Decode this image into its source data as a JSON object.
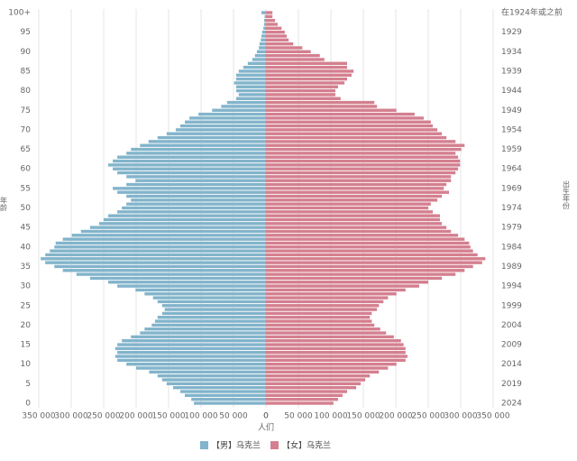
{
  "chart_data": {
    "type": "pyramid",
    "x_label": "人们",
    "y_label": "年龄",
    "y2_label": "出生年份",
    "categories": [
      "0",
      null,
      null,
      null,
      null,
      "5",
      null,
      null,
      null,
      null,
      "10",
      null,
      null,
      null,
      null,
      "15",
      null,
      null,
      null,
      null,
      "20",
      null,
      null,
      null,
      null,
      "25",
      null,
      null,
      null,
      null,
      "30",
      null,
      null,
      null,
      null,
      "35",
      null,
      null,
      null,
      null,
      "40",
      null,
      null,
      null,
      null,
      "45",
      null,
      null,
      null,
      null,
      "50",
      null,
      null,
      null,
      null,
      "55",
      null,
      null,
      null,
      null,
      "60",
      null,
      null,
      null,
      null,
      "65",
      null,
      null,
      null,
      null,
      "70",
      null,
      null,
      null,
      null,
      "75",
      null,
      null,
      null,
      null,
      "80",
      null,
      null,
      null,
      null,
      "85",
      null,
      null,
      null,
      null,
      "90",
      null,
      null,
      null,
      null,
      "95",
      null,
      null,
      null,
      null,
      "100+"
    ],
    "birth_years": [
      "2024",
      null,
      null,
      null,
      null,
      "2019",
      null,
      null,
      null,
      null,
      "2014",
      null,
      null,
      null,
      null,
      "2009",
      null,
      null,
      null,
      null,
      "2004",
      null,
      null,
      null,
      null,
      "1999",
      null,
      null,
      null,
      null,
      "1994",
      null,
      null,
      null,
      null,
      "1989",
      null,
      null,
      null,
      null,
      "1984",
      null,
      null,
      null,
      null,
      "1979",
      null,
      null,
      null,
      null,
      "1974",
      null,
      null,
      null,
      null,
      "1969",
      null,
      null,
      null,
      null,
      "1964",
      null,
      null,
      null,
      null,
      "1959",
      null,
      null,
      null,
      null,
      "1954",
      null,
      null,
      null,
      null,
      "1949",
      null,
      null,
      null,
      null,
      "1944",
      null,
      null,
      null,
      null,
      "1939",
      null,
      null,
      null,
      null,
      "1934",
      null,
      null,
      null,
      null,
      "1929",
      null,
      null,
      null,
      null,
      "在1924年或之前"
    ],
    "series": [
      {
        "name": "【男】乌克兰",
        "color": "#82b4cb",
        "values": [
          111000,
          115000,
          125000,
          132000,
          143000,
          153000,
          160000,
          167000,
          180000,
          200000,
          215000,
          229000,
          232000,
          229000,
          232000,
          229000,
          222000,
          208000,
          194000,
          187000,
          176000,
          171000,
          167000,
          160000,
          156000,
          160000,
          167000,
          174000,
          187000,
          201000,
          229000,
          243000,
          271000,
          292000,
          313000,
          326000,
          340000,
          347000,
          340000,
          333000,
          326000,
          324000,
          313000,
          299000,
          285000,
          271000,
          257000,
          250000,
          243000,
          229000,
          222000,
          215000,
          208000,
          215000,
          229000,
          236000,
          215000,
          201000,
          215000,
          229000,
          236000,
          243000,
          236000,
          229000,
          215000,
          208000,
          194000,
          181000,
          167000,
          153000,
          139000,
          132000,
          125000,
          118000,
          104000,
          83000,
          69000,
          60000,
          46000,
          42000,
          46000,
          46000,
          49000,
          46000,
          46000,
          42000,
          35000,
          28000,
          21000,
          17000,
          14000,
          11000,
          10000,
          8000,
          7000,
          6000,
          4000,
          3000,
          3000,
          2000,
          7000
        ]
      },
      {
        "name": "【女】乌克兰",
        "color": "#d47f8f",
        "values": [
          104000,
          111000,
          118000,
          125000,
          139000,
          146000,
          153000,
          160000,
          174000,
          188000,
          201000,
          215000,
          218000,
          215000,
          215000,
          212000,
          208000,
          197000,
          185000,
          176000,
          167000,
          163000,
          160000,
          163000,
          171000,
          174000,
          181000,
          188000,
          201000,
          215000,
          236000,
          250000,
          271000,
          292000,
          306000,
          319000,
          333000,
          338000,
          326000,
          319000,
          315000,
          313000,
          306000,
          296000,
          285000,
          278000,
          271000,
          268000,
          268000,
          257000,
          250000,
          254000,
          264000,
          271000,
          282000,
          274000,
          278000,
          285000,
          285000,
          292000,
          296000,
          299000,
          299000,
          296000,
          292000,
          301000,
          306000,
          292000,
          278000,
          271000,
          264000,
          257000,
          254000,
          243000,
          229000,
          201000,
          171000,
          167000,
          115000,
          107000,
          107000,
          111000,
          121000,
          125000,
          132000,
          135000,
          125000,
          125000,
          90000,
          83000,
          69000,
          56000,
          42000,
          35000,
          32000,
          29000,
          24000,
          18000,
          14000,
          10000,
          10000
        ]
      }
    ],
    "xlim": [
      0,
      350000
    ],
    "xticks": [
      0,
      {
        "value": 50000,
        "label": "50 000"
      },
      {
        "value": 100000,
        "label": "100 000"
      },
      {
        "value": 150000,
        "label": "150 000"
      },
      {
        "value": 200000,
        "label": "200 000"
      },
      {
        "value": 250000,
        "label": "250 000"
      },
      {
        "value": 300000,
        "label": "300 000"
      },
      {
        "value": 350000,
        "label": "350 000"
      }
    ],
    "grid": true
  }
}
